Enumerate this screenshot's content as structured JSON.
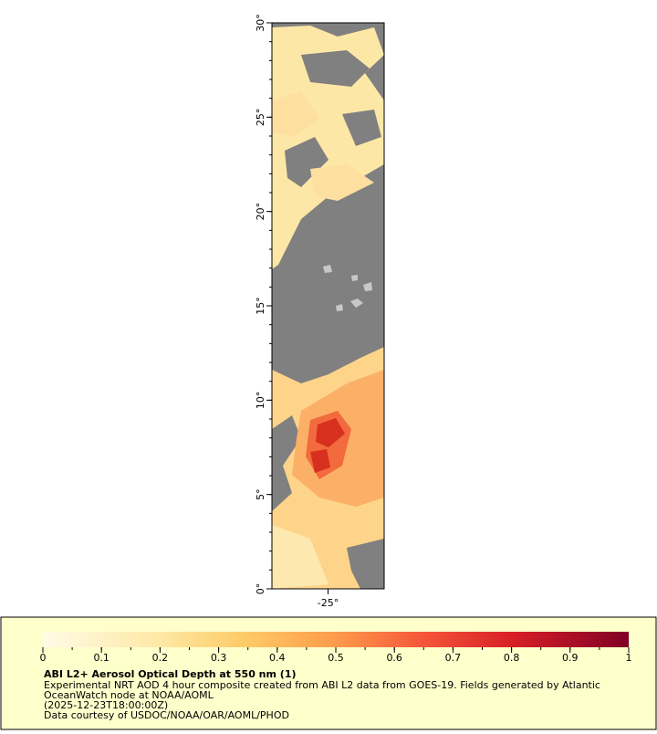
{
  "map": {
    "latlim": [
      0,
      30
    ],
    "lonlim": [
      -28,
      -22
    ],
    "lat_ticks": [
      {
        "value": 0,
        "label": "0°"
      },
      {
        "value": 5,
        "label": "5°"
      },
      {
        "value": 10,
        "label": "10°"
      },
      {
        "value": 15,
        "label": "15°"
      },
      {
        "value": 20,
        "label": "20°"
      },
      {
        "value": 25,
        "label": "25°"
      },
      {
        "value": 30,
        "label": "30°"
      }
    ],
    "lon_ticks": [
      {
        "value": -25,
        "label": "-25°"
      }
    ]
  },
  "colorbar": {
    "range": [
      0,
      1
    ],
    "ticks": [
      0,
      0.1,
      0.2,
      0.3,
      0.4,
      0.5,
      0.6,
      0.7,
      0.8,
      0.9,
      1
    ]
  },
  "legend": {
    "title": "ABI L2+ Aerosol Optical Depth at 550 nm (1)",
    "lines": [
      "Experimental NRT AOD 4 hour composite created from ABI L2 data from GOES-19. Fields generated by Atlantic",
      "OceanWatch node at NOAA/AOML",
      "(2025-12-23T18:00:00Z)",
      "Data courtesy of USDOC/NOAA/OAR/AOML/PHOD"
    ]
  }
}
